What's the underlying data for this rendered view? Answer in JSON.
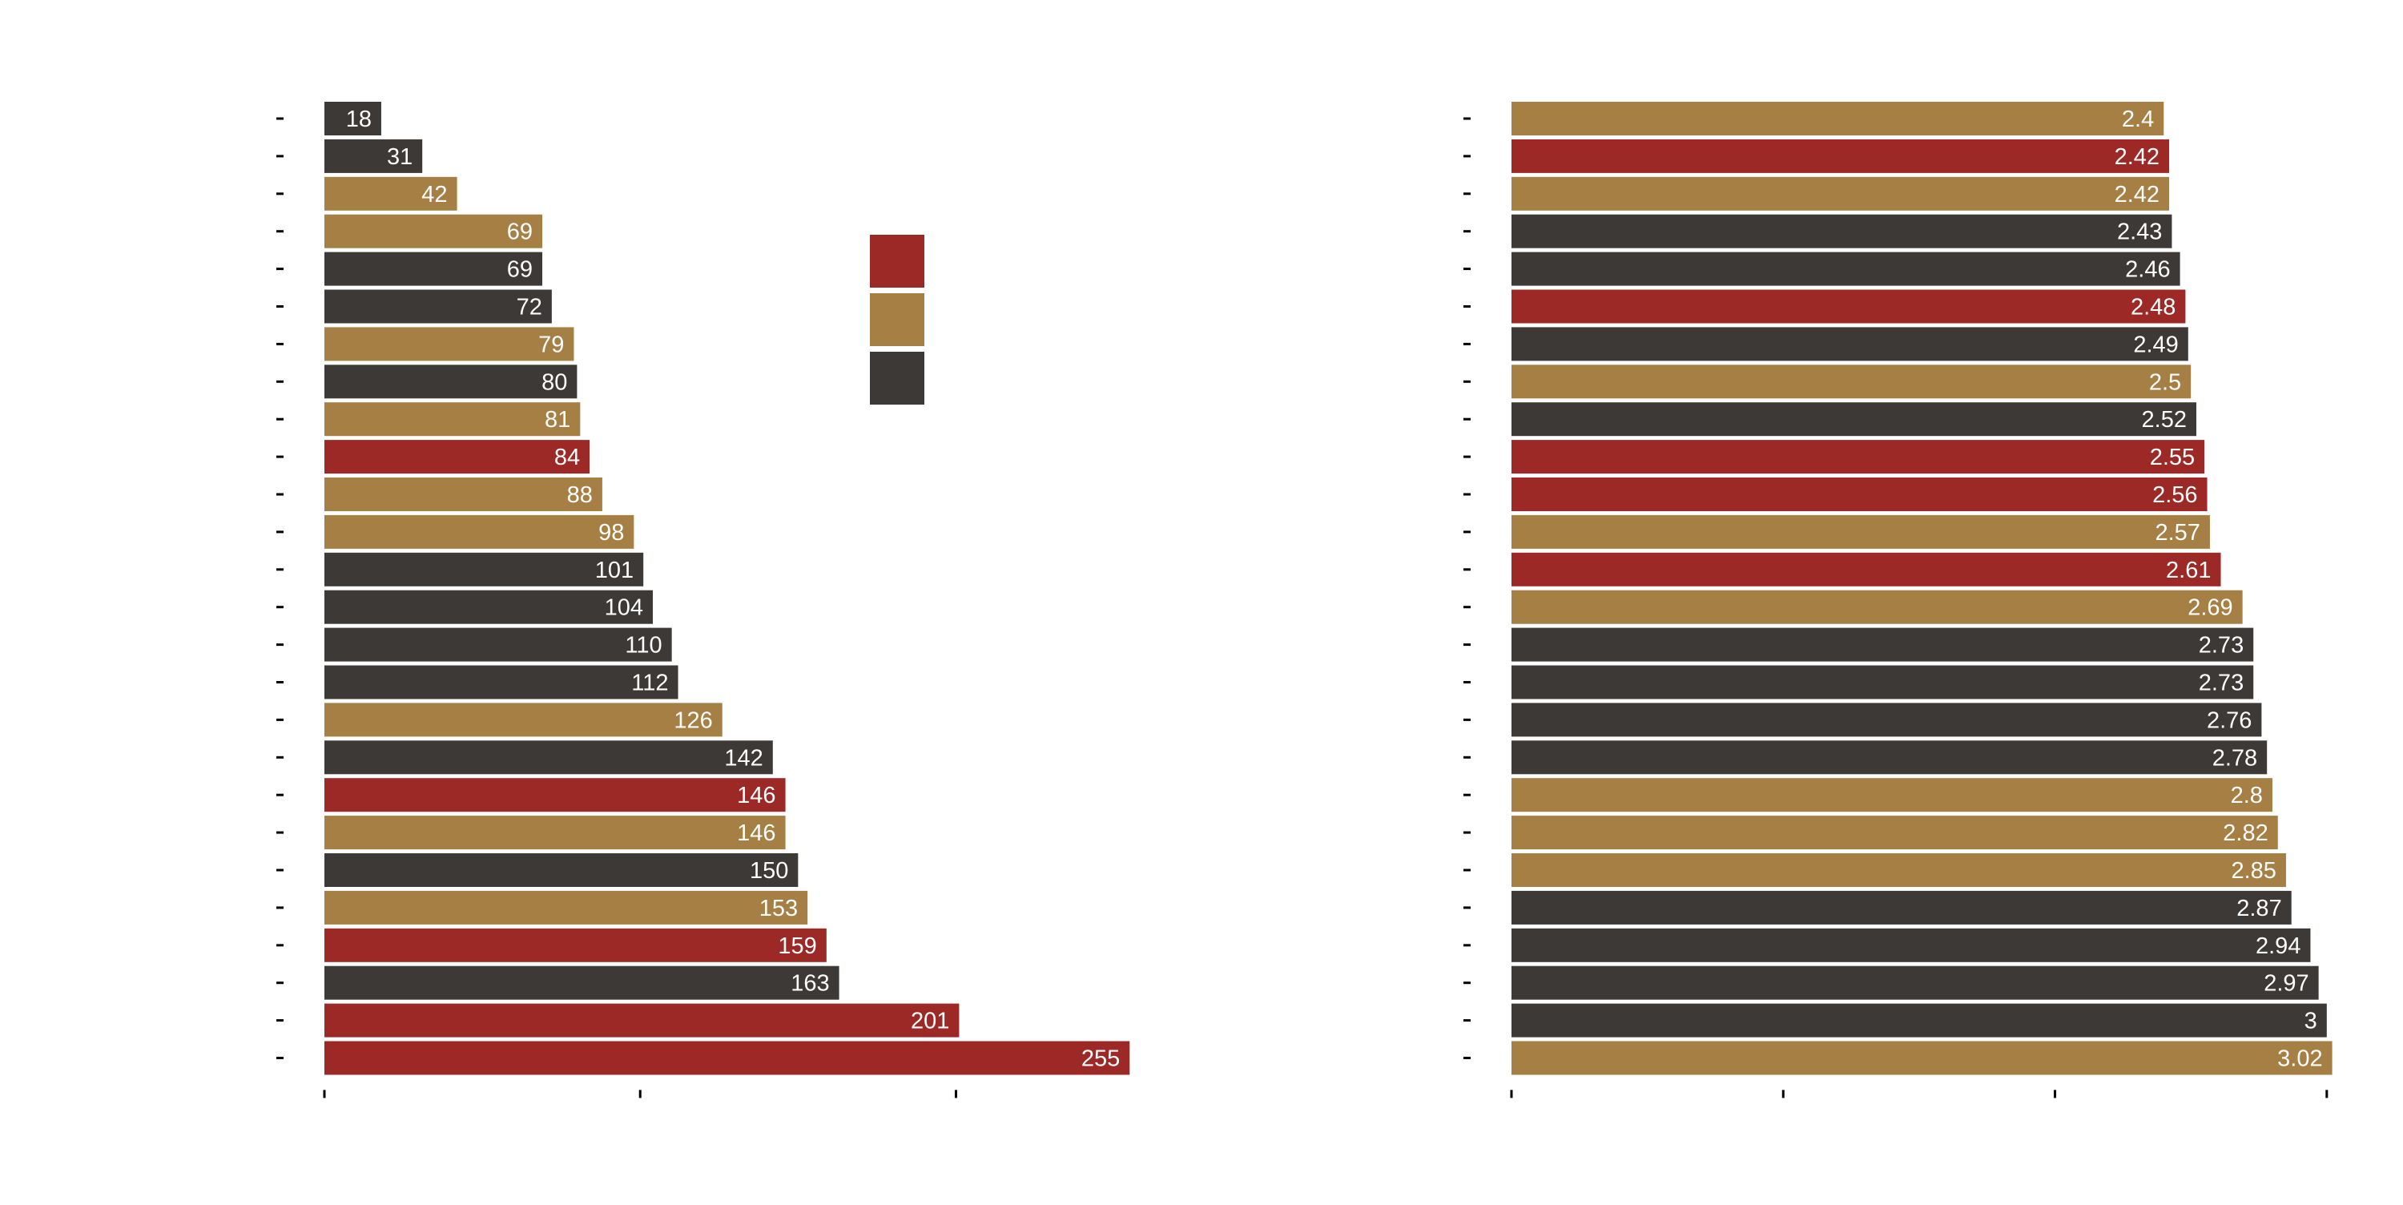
{
  "colors": {
    "red": "#9c2926",
    "gold": "#a67f44",
    "dark": "#3c3937",
    "label": "#ffffff",
    "tick": "#000000"
  },
  "legend": {
    "items": [
      {
        "color": "red",
        "label": ""
      },
      {
        "color": "gold",
        "label": ""
      },
      {
        "color": "dark",
        "label": ""
      }
    ]
  },
  "chart_data": [
    {
      "type": "bar",
      "orientation": "horizontal",
      "title": "",
      "xlabel": "",
      "ylabel": "",
      "xlim": [
        0,
        260
      ],
      "x_ticks": [
        0,
        100,
        200
      ],
      "grid": false,
      "legend": "right",
      "categories": [
        "",
        "",
        "",
        "",
        "",
        "",
        "",
        "",
        "",
        "",
        "",
        "",
        "",
        "",
        "",
        "",
        "",
        "",
        "",
        "",
        "",
        "",
        "",
        "",
        "",
        ""
      ],
      "values": [
        18,
        31,
        42,
        69,
        69,
        72,
        79,
        80,
        81,
        84,
        88,
        98,
        101,
        104,
        110,
        112,
        126,
        142,
        146,
        146,
        150,
        153,
        159,
        163,
        201,
        255
      ],
      "value_labels": [
        "18",
        "31",
        "42",
        "69",
        "69",
        "72",
        "79",
        "80",
        "81",
        "84",
        "88",
        "98",
        "101",
        "104",
        "110",
        "112",
        "126",
        "142",
        "146",
        "146",
        "150",
        "153",
        "159",
        "163",
        "201",
        "255"
      ],
      "bar_colors": [
        "dark",
        "dark",
        "gold",
        "gold",
        "dark",
        "dark",
        "gold",
        "dark",
        "gold",
        "red",
        "gold",
        "gold",
        "dark",
        "dark",
        "dark",
        "dark",
        "gold",
        "dark",
        "red",
        "gold",
        "dark",
        "gold",
        "red",
        "dark",
        "red",
        "red"
      ]
    },
    {
      "type": "bar",
      "orientation": "horizontal",
      "title": "",
      "xlabel": "",
      "ylabel": "",
      "xlim": [
        0,
        3.03
      ],
      "x_ticks": [
        0,
        1,
        2,
        3
      ],
      "grid": false,
      "categories": [
        "",
        "",
        "",
        "",
        "",
        "",
        "",
        "",
        "",
        "",
        "",
        "",
        "",
        "",
        "",
        "",
        "",
        "",
        "",
        "",
        "",
        "",
        "",
        "",
        "",
        ""
      ],
      "values": [
        2.4,
        2.42,
        2.42,
        2.43,
        2.46,
        2.48,
        2.49,
        2.5,
        2.52,
        2.55,
        2.56,
        2.57,
        2.61,
        2.69,
        2.73,
        2.73,
        2.76,
        2.78,
        2.8,
        2.82,
        2.85,
        2.87,
        2.94,
        2.97,
        3,
        3.02
      ],
      "value_labels": [
        "2.4",
        "2.42",
        "2.42",
        "2.43",
        "2.46",
        "2.48",
        "2.49",
        "2.5",
        "2.52",
        "2.55",
        "2.56",
        "2.57",
        "2.61",
        "2.69",
        "2.73",
        "2.73",
        "2.76",
        "2.78",
        "2.8",
        "2.82",
        "2.85",
        "2.87",
        "2.94",
        "2.97",
        "3",
        "3.02"
      ],
      "bar_colors": [
        "gold",
        "red",
        "gold",
        "dark",
        "dark",
        "red",
        "dark",
        "gold",
        "dark",
        "red",
        "red",
        "gold",
        "red",
        "gold",
        "dark",
        "dark",
        "dark",
        "dark",
        "gold",
        "gold",
        "gold",
        "dark",
        "dark",
        "dark",
        "dark",
        "gold"
      ]
    }
  ]
}
